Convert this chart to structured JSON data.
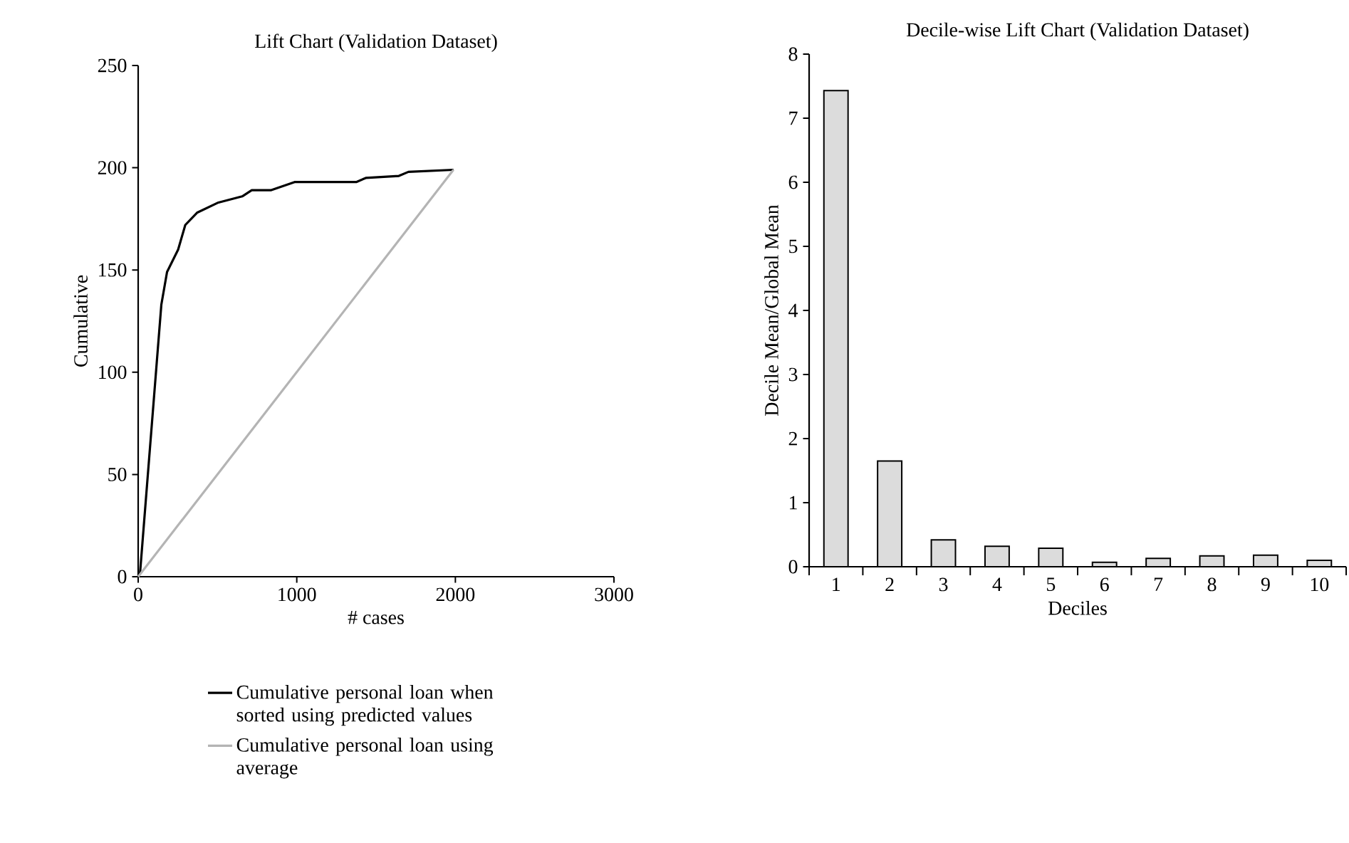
{
  "chart_data": [
    {
      "type": "line",
      "title": "Lift Chart (Validation Dataset)",
      "xlabel": "# cases",
      "ylabel": "Cumulative",
      "xlim": [
        0,
        3000
      ],
      "xticks": [
        0,
        1000,
        2000,
        3000
      ],
      "ylim": [
        0,
        250
      ],
      "yticks": [
        0,
        50,
        100,
        150,
        200,
        250
      ],
      "legend": "bottom",
      "series": [
        {
          "name": "Cumulative personal loan when sorted using predicted values",
          "color": "#000000",
          "x": [
            0,
            12,
            146,
            182,
            252,
            297,
            371,
            506,
            656,
            716,
            836,
            986,
            1375,
            1435,
            1644,
            1704,
            1988
          ],
          "values": [
            0,
            2,
            133,
            149,
            160,
            172,
            178,
            183,
            186,
            189,
            189,
            193,
            193,
            195,
            196,
            198,
            199
          ]
        },
        {
          "name": "Cumulative personal loan using average",
          "color": "#b4b4b4",
          "x": [
            0,
            1988
          ],
          "values": [
            0,
            199
          ]
        }
      ]
    },
    {
      "type": "bar",
      "title": "Decile-wise Lift Chart (Validation Dataset)",
      "xlabel": "Deciles",
      "ylabel": "Decile Mean/Global Mean",
      "categories": [
        "1",
        "2",
        "3",
        "4",
        "5",
        "6",
        "7",
        "8",
        "9",
        "10"
      ],
      "values": [
        7.43,
        1.65,
        0.42,
        0.32,
        0.29,
        0.07,
        0.13,
        0.17,
        0.18,
        0.1
      ],
      "color": "#dcdcdc",
      "ylim": [
        0,
        8
      ],
      "yticks": [
        0,
        1,
        2,
        3,
        4,
        5,
        6,
        7,
        8
      ]
    }
  ]
}
